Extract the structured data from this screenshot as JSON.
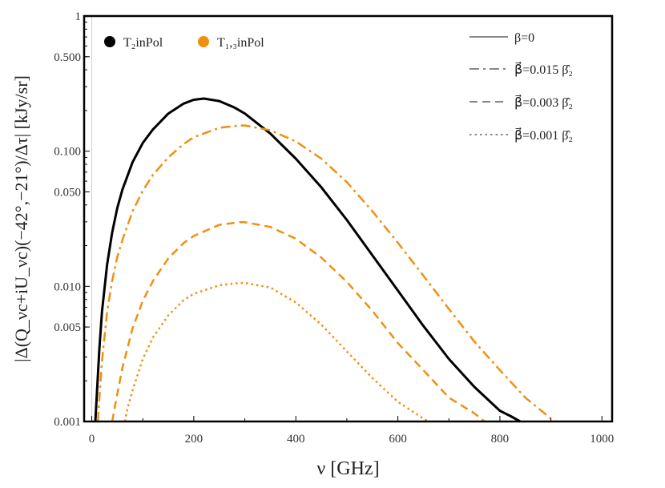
{
  "chart_data": {
    "type": "line",
    "xlabel": "ν [GHz]",
    "ylabel": "|Δ(Q_νc+iU_νc)(−42°,−21°)/Δτ| [kJy/sr]",
    "xlim": [
      -15,
      1020
    ],
    "ylim": [
      0.001,
      1
    ],
    "yscale": "log",
    "x_ticks": [
      "0",
      "200",
      "400",
      "600",
      "800",
      "1000"
    ],
    "y_ticks": [
      "0.001",
      "0.005",
      "0.010",
      "0.050",
      "0.100",
      "0.500",
      "1"
    ],
    "grid": false,
    "legend_colors": [
      {
        "name": "T₂inPol",
        "color": "#000000"
      },
      {
        "name": "T₁,₃inPol",
        "color": "#f0900f"
      }
    ],
    "legend_styles": [
      {
        "name": "β=0",
        "dash": "solid"
      },
      {
        "name": "β⃗=0.015 β̂₂",
        "dash": "dashdot"
      },
      {
        "name": "β⃗=0.003 β̂₂",
        "dash": "dashed"
      },
      {
        "name": "β⃗=0.001 β̂₂",
        "dash": "dotted"
      }
    ],
    "series": [
      {
        "name": "T₂inPol β=0",
        "color": "#000000",
        "dash": "solid",
        "x": [
          7,
          10,
          15,
          20,
          30,
          40,
          50,
          60,
          80,
          100,
          120,
          150,
          180,
          200,
          220,
          250,
          280,
          300,
          350,
          400,
          450,
          500,
          550,
          600,
          650,
          700,
          750,
          800,
          820,
          840
        ],
        "y": [
          0.001,
          0.0016,
          0.0035,
          0.0065,
          0.0145,
          0.025,
          0.038,
          0.052,
          0.083,
          0.115,
          0.145,
          0.19,
          0.225,
          0.24,
          0.245,
          0.235,
          0.21,
          0.19,
          0.135,
          0.088,
          0.054,
          0.031,
          0.017,
          0.0093,
          0.0051,
          0.0029,
          0.0018,
          0.0012,
          0.0011,
          0.001
        ]
      },
      {
        "name": "T₁,₃inPol β⃗=0.015 β̂₂",
        "color": "#f0900f",
        "dash": "dashdot",
        "x": [
          12,
          15,
          20,
          30,
          40,
          50,
          60,
          80,
          100,
          120,
          150,
          180,
          200,
          250,
          290,
          300,
          350,
          400,
          450,
          500,
          550,
          600,
          650,
          700,
          750,
          800,
          850,
          900,
          910
        ],
        "y": [
          0.001,
          0.0015,
          0.0028,
          0.0065,
          0.011,
          0.0165,
          0.022,
          0.036,
          0.051,
          0.067,
          0.09,
          0.113,
          0.127,
          0.149,
          0.155,
          0.155,
          0.143,
          0.118,
          0.088,
          0.059,
          0.036,
          0.021,
          0.012,
          0.0068,
          0.0039,
          0.0024,
          0.0015,
          0.00105,
          0.001
        ]
      },
      {
        "name": "T₁,₃inPol β⃗=0.003 β̂₂",
        "color": "#f0900f",
        "dash": "dashed",
        "x": [
          40,
          50,
          60,
          80,
          100,
          120,
          150,
          180,
          200,
          250,
          290,
          300,
          350,
          400,
          450,
          500,
          550,
          600,
          650,
          700,
          750,
          770
        ],
        "y": [
          0.001,
          0.0016,
          0.0025,
          0.0049,
          0.0078,
          0.011,
          0.0161,
          0.0209,
          0.0236,
          0.0285,
          0.0298,
          0.0298,
          0.0275,
          0.0225,
          0.0163,
          0.0108,
          0.0066,
          0.0038,
          0.0024,
          0.0015,
          0.00115,
          0.001
        ]
      },
      {
        "name": "T₁,₃inPol β⃗=0.001 β̂₂",
        "color": "#f0900f",
        "dash": "dotted",
        "x": [
          65,
          70,
          80,
          100,
          120,
          150,
          180,
          200,
          250,
          290,
          300,
          350,
          400,
          450,
          500,
          550,
          600,
          650,
          660
        ],
        "y": [
          0.001,
          0.00125,
          0.0017,
          0.0029,
          0.0042,
          0.0061,
          0.0079,
          0.0088,
          0.0102,
          0.0106,
          0.0106,
          0.0098,
          0.0076,
          0.0052,
          0.0033,
          0.0021,
          0.0014,
          0.00105,
          0.001
        ]
      }
    ]
  }
}
